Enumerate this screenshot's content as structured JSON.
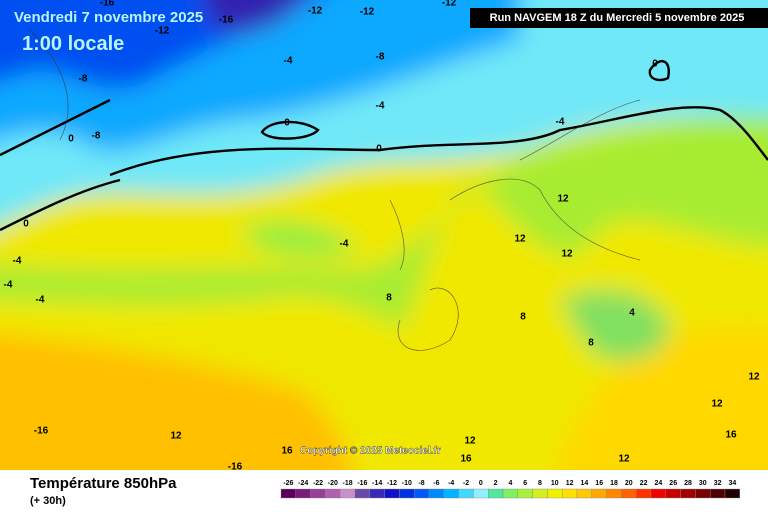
{
  "header": {
    "title": "Vendredi 7 novembre 2025",
    "time": "1:00 locale",
    "run": "Run NAVGEM 18 Z du Mercredi 5 novembre 2025"
  },
  "footer": {
    "label": "Température 850hPa",
    "lead": "(+ 30h)",
    "copyright": "Copyright © 2025 Meteociel.fr"
  },
  "scale": {
    "ticks": [
      -26,
      -24,
      -22,
      -20,
      -18,
      -16,
      -14,
      -12,
      -10,
      -8,
      -6,
      -4,
      -2,
      0,
      2,
      4,
      6,
      8,
      10,
      12,
      14,
      16,
      18,
      20,
      22,
      24,
      26,
      28,
      30,
      32,
      34
    ],
    "colors": [
      "#5a005a",
      "#7a1a7a",
      "#964096",
      "#b060b0",
      "#c890c8",
      "#6a4aa8",
      "#3a2ab8",
      "#1010c8",
      "#0030e0",
      "#0058f8",
      "#0088ff",
      "#00b4ff",
      "#40d8ff",
      "#90f0ff",
      "#50e8a0",
      "#80f060",
      "#a8f040",
      "#d0f020",
      "#f0f000",
      "#ffe000",
      "#ffc800",
      "#ffa800",
      "#ff8800",
      "#ff6000",
      "#ff3000",
      "#f00000",
      "#c80000",
      "#a00000",
      "#780000",
      "#500000",
      "#200000"
    ]
  },
  "contour_labels": [
    -16,
    -16,
    -12,
    -12,
    -12,
    -12,
    -8,
    -8,
    -4,
    -8,
    0,
    0,
    -4,
    0,
    0,
    -4,
    0,
    -4,
    -4,
    -4,
    -4,
    8,
    12,
    12,
    12,
    8,
    4,
    8,
    12,
    12,
    16,
    -16,
    12,
    16,
    12,
    16,
    12,
    -16
  ]
}
